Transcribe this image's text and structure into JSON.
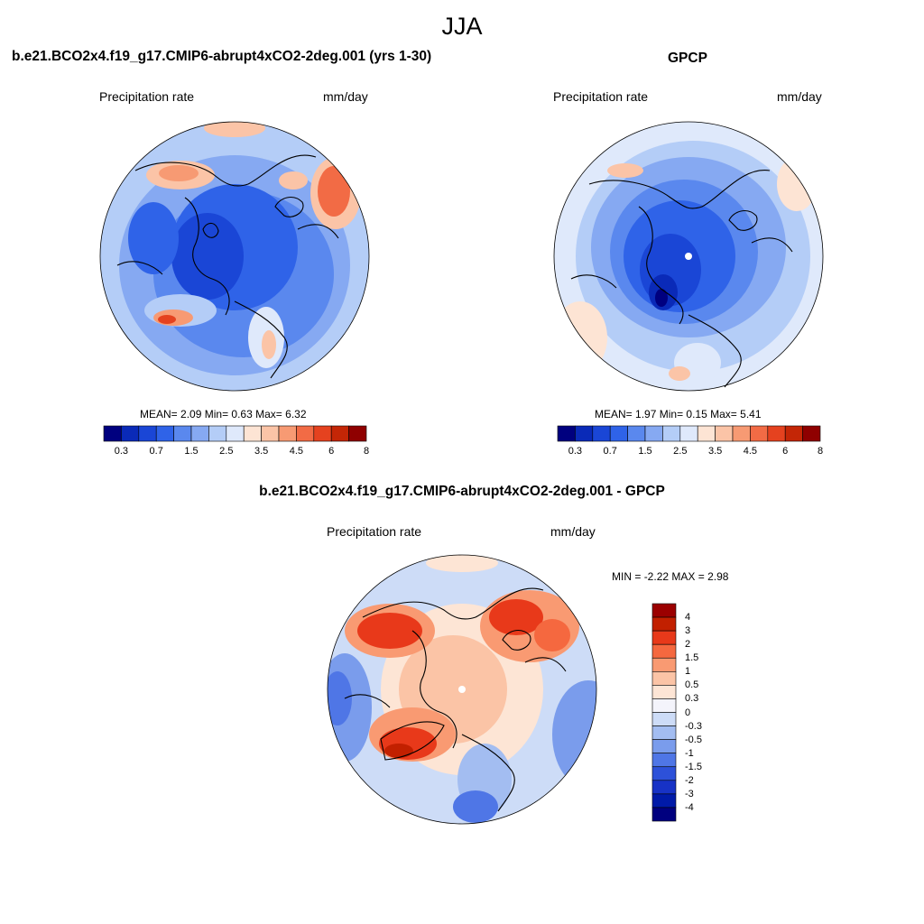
{
  "season": "JJA",
  "palette": {
    "abs": [
      "#00007f",
      "#0a2ab8",
      "#1a46d6",
      "#2f63e8",
      "#5a88ee",
      "#86a9f2",
      "#b4cdf7",
      "#dfe9fb",
      "#fde4d4",
      "#fbc4a7",
      "#f79a73",
      "#f26b45",
      "#e5421f",
      "#c42606",
      "#8f0000"
    ],
    "diff": [
      "#9b0000",
      "#c22000",
      "#e8391a",
      "#f5683f",
      "#f99a72",
      "#fbc4a6",
      "#fde5d5",
      "#f4f4fb",
      "#cddcf7",
      "#a3bdf1",
      "#7a9cec",
      "#4f76e6",
      "#2d51d9",
      "#1732c6",
      "#001aa8",
      "#00007f"
    ]
  },
  "panels": {
    "left": {
      "title": "b.e21.BCO2x4.f19_g17.CMIP6-abrupt4xCO2-2deg.001 (yrs 1-30)",
      "variable": "Precipitation rate",
      "units": "mm/day",
      "mean_label": "MEAN=",
      "mean": "2.09",
      "min_label": "Min=",
      "min": "0.63",
      "max_label": "Max=",
      "max": "6.32"
    },
    "right": {
      "title": "GPCP",
      "variable": "Precipitation rate",
      "units": "mm/day",
      "mean_label": "MEAN=",
      "mean": "1.97",
      "min_label": "Min=",
      "min": "0.15",
      "max_label": "Max=",
      "max": "5.41"
    },
    "diff": {
      "title": "b.e21.BCO2x4.f19_g17.CMIP6-abrupt4xCO2-2deg.001 - GPCP",
      "variable": "Precipitation rate",
      "units": "mm/day",
      "min_label": "MIN =",
      "min": "-2.22",
      "max_label": "MAX =",
      "max": "2.98"
    }
  },
  "colorbar_abs": {
    "ticks": [
      "0.3",
      "0.7",
      "1.5",
      "2.5",
      "3.5",
      "4.5",
      "6",
      "8"
    ]
  },
  "colorbar_diff": {
    "ticks": [
      "4",
      "3",
      "2",
      "1.5",
      "1",
      "0.5",
      "0.3",
      "0",
      "-0.3",
      "-0.5",
      "-1",
      "-1.5",
      "-2",
      "-3",
      "-4"
    ]
  }
}
